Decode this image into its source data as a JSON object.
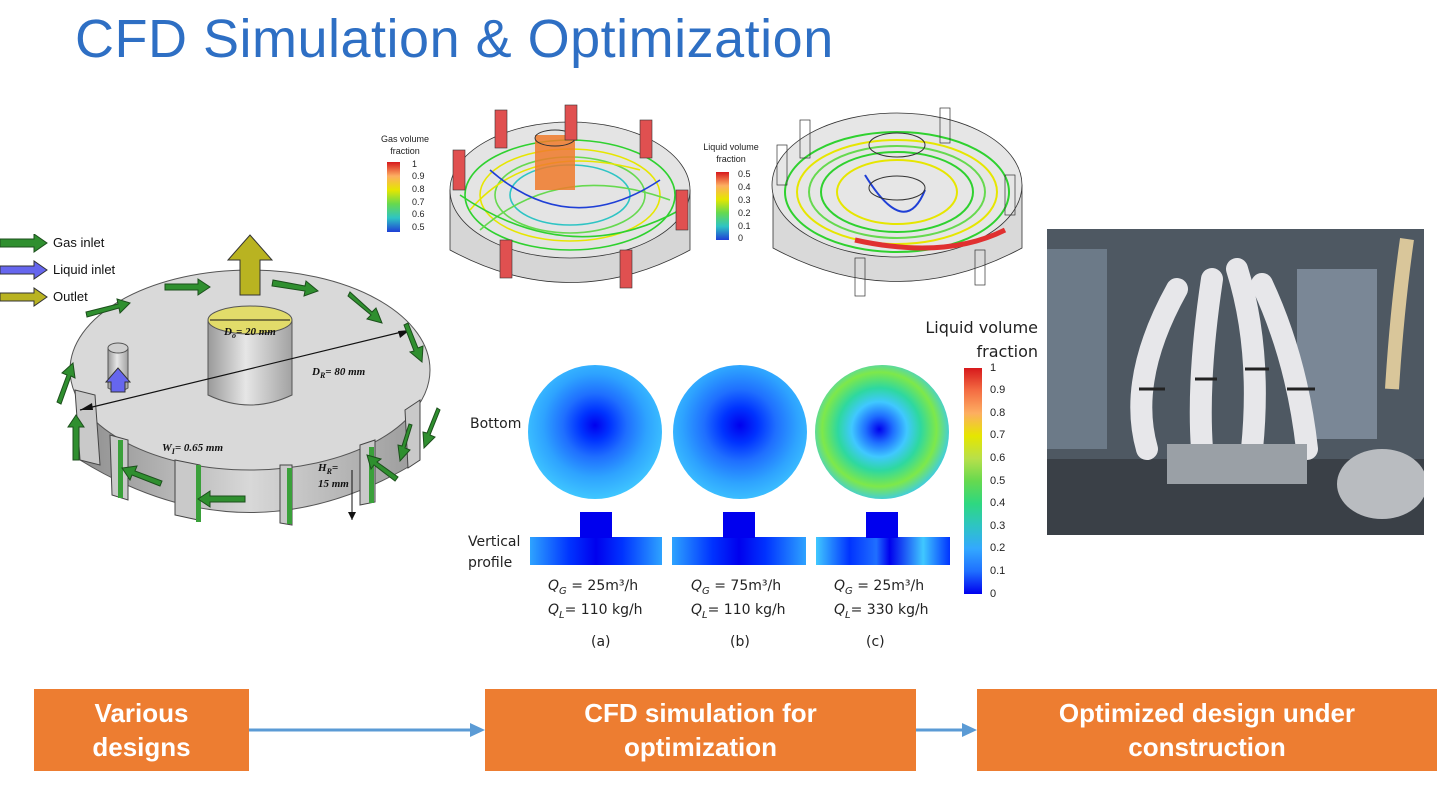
{
  "title": "CFD Simulation & Optimization",
  "legend": {
    "gas_inlet": "Gas inlet",
    "liquid_inlet": "Liquid inlet",
    "outlet": "Outlet"
  },
  "dimensions": {
    "outlet_diameter": "D",
    "outlet_sub": "o",
    "outlet_value": "= 20 mm",
    "reactor_diameter": "D",
    "reactor_sub": "R",
    "reactor_value": "= 80 mm",
    "inlet_width": "W",
    "inlet_sub": "I",
    "inlet_value": "= 0.65 mm",
    "height": "H",
    "height_sub": "R",
    "height_value": "=",
    "height_value2": "15 mm"
  },
  "colorbars": {
    "gas": {
      "title_line1": "Gas volume",
      "title_line2": "fraction",
      "ticks": [
        "1",
        "0.9",
        "0.8",
        "0.7",
        "0.6",
        "0.5"
      ]
    },
    "liquid_small": {
      "title_line1": "Liquid volume",
      "title_line2": "fraction",
      "ticks": [
        "0.5",
        "0.4",
        "0.3",
        "0.2",
        "0.1",
        "0"
      ]
    },
    "liquid_big": {
      "title_line1": "Liquid volume",
      "title_line2": "fraction",
      "ticks": [
        "1",
        "0.9",
        "0.8",
        "0.7",
        "0.6",
        "0.5",
        "0.4",
        "0.3",
        "0.2",
        "0.1",
        "0"
      ]
    }
  },
  "contours": {
    "row_bottom": "Bottom",
    "row_vertical_1": "Vertical",
    "row_vertical_2": "profile",
    "cases": [
      {
        "qg_sym": "Q",
        "qg_sub": "G",
        "qg_val": " = 25m³/h",
        "ql_sym": "Q",
        "ql_sub": "L",
        "ql_val": "= 110 kg/h",
        "letter": "(a)"
      },
      {
        "qg_sym": "Q",
        "qg_sub": "G",
        "qg_val": " = 75m³/h",
        "ql_sym": "Q",
        "ql_sub": "L",
        "ql_val": "= 110 kg/h",
        "letter": "(b)"
      },
      {
        "qg_sym": "Q",
        "qg_sub": "G",
        "qg_val": " = 25m³/h",
        "ql_sym": "Q",
        "ql_sub": "L",
        "ql_val": "= 330 kg/h",
        "letter": "(c)"
      }
    ]
  },
  "flow": {
    "step1_line1": "Various",
    "step1_line2": "designs",
    "step2_line1": "CFD simulation for",
    "step2_line2": "optimization",
    "step3_line1": "Optimized design under",
    "step3_line2": "construction"
  },
  "colors": {
    "title": "#2e6fc4",
    "box": "#ed7d31",
    "arrow": "#5b9bd5",
    "gas_arrow": "#2f8f2f",
    "liquid_arrow": "#6666ee",
    "outlet_arrow": "#b9b321"
  }
}
